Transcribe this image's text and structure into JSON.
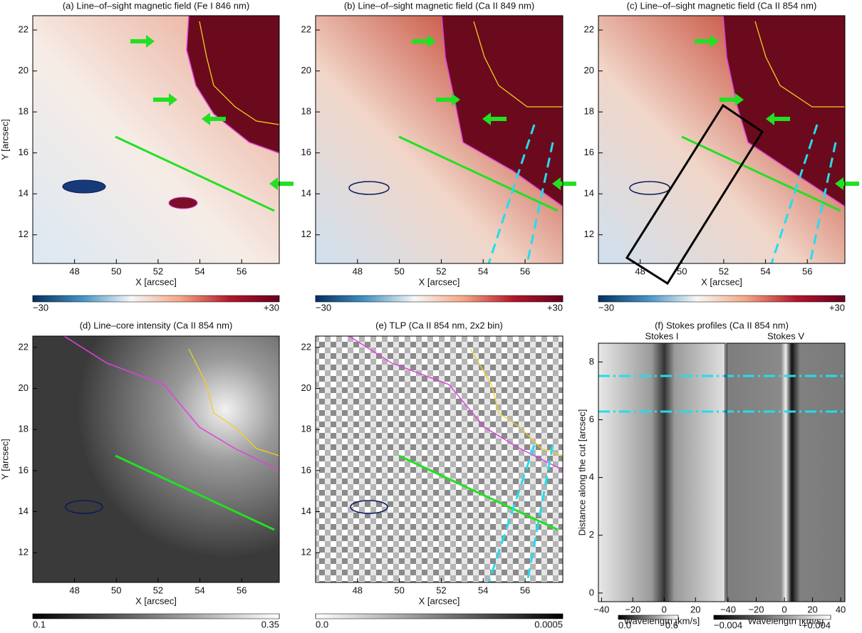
{
  "chart_data": [
    {
      "type": "heatmap",
      "title": "(a) Line–of–sight magnetic field (Fe I 846 nm)",
      "xlabel": "X [arcsec]",
      "ylabel": "Y [arcsec]",
      "xlim": [
        46,
        57.8
      ],
      "ylim": [
        10.6,
        22.7
      ],
      "xticks": [
        48,
        50,
        52,
        54,
        56
      ],
      "yticks": [
        12,
        14,
        16,
        18,
        20,
        22
      ],
      "colormap": [
        "#053061",
        "#4393c3",
        "#f7f7f7",
        "#f4a582",
        "#b2182b",
        "#67001f"
      ],
      "clim": [
        -30,
        30
      ],
      "colorbar": [
        {
          "value": -30,
          "label": "−30"
        },
        {
          "value": 30,
          "label": "+30"
        }
      ]
    },
    {
      "type": "heatmap",
      "title": "(b) Line–of–sight magnetic field (Ca II 849 nm)",
      "xlabel": "X [arcsec]",
      "xlim": [
        46,
        57.8
      ],
      "ylim": [
        10.6,
        22.7
      ],
      "xticks": [
        48,
        50,
        52,
        54,
        56
      ],
      "yticks": [
        12,
        14,
        16,
        18,
        20,
        22
      ],
      "colormap": [
        "#053061",
        "#4393c3",
        "#f7f7f7",
        "#f4a582",
        "#b2182b",
        "#67001f"
      ],
      "clim": [
        -30,
        30
      ],
      "colorbar": [
        {
          "value": -30,
          "label": "−30"
        },
        {
          "value": 30,
          "label": "+30"
        }
      ]
    },
    {
      "type": "heatmap",
      "title": "(c) Line–of–sight magnetic field (Ca II 854 nm)",
      "xlabel": "X [arcsec]",
      "xlim": [
        46,
        57.8
      ],
      "ylim": [
        10.6,
        22.7
      ],
      "xticks": [
        48,
        50,
        52,
        54,
        56
      ],
      "yticks": [
        12,
        14,
        16,
        18,
        20,
        22
      ],
      "colormap": [
        "#053061",
        "#4393c3",
        "#f7f7f7",
        "#f4a582",
        "#b2182b",
        "#67001f"
      ],
      "clim": [
        -30,
        30
      ],
      "colorbar": [
        {
          "value": -30,
          "label": "−30"
        },
        {
          "value": 30,
          "label": "+30"
        }
      ]
    },
    {
      "type": "heatmap",
      "title": "(d) Line–core intensity (Ca II 854 nm)",
      "xlabel": "X [arcsec]",
      "ylabel": "Y [arcsec]",
      "xlim": [
        46,
        57.8
      ],
      "ylim": [
        10.55,
        22.55
      ],
      "xticks": [
        48,
        50,
        52,
        54,
        56
      ],
      "yticks": [
        12,
        14,
        16,
        18,
        20,
        22
      ],
      "colormap": [
        "#000000",
        "#ffffff"
      ],
      "clim": [
        0.1,
        0.35
      ],
      "colorbar": [
        0.1,
        0.35
      ]
    },
    {
      "type": "heatmap",
      "title": "(e) TLP (Ca II 854 nm, 2x2 bin)",
      "xlabel": "X [arcsec]",
      "xlim": [
        46,
        57.8
      ],
      "ylim": [
        10.55,
        22.55
      ],
      "xticks": [
        48,
        50,
        52,
        54,
        56
      ],
      "yticks": [
        12,
        14,
        16,
        18,
        20,
        22
      ],
      "colormap": [
        "#ffffff",
        "#000000"
      ],
      "clim": [
        0,
        0.0005
      ],
      "colorbar": [
        {
          "value": 0,
          "label": "0.0"
        },
        0.0005
      ]
    },
    {
      "type": "heatmap",
      "title": "(f) Stokes profiles (Ca II 854 nm)",
      "subtitle": "Stokes I",
      "xlabel": "Wavelength [km/s]",
      "ylabel": "Distance along the cut [arcsec]",
      "xlim": [
        -42,
        39
      ],
      "ylim": [
        -0.3,
        8.65
      ],
      "xticks": [
        {
          "value": -40,
          "label": "−40"
        },
        {
          "value": -20,
          "label": "−20"
        },
        0,
        20
      ],
      "yticks": [
        0,
        2,
        4,
        6,
        8
      ],
      "colormap": [
        "#000000",
        "#ffffff"
      ],
      "clim": [
        0,
        0.6
      ],
      "colorbar": [
        {
          "value": 0,
          "label": "0.0"
        },
        0.6
      ]
    },
    {
      "type": "heatmap",
      "subtitle": "Stokes V",
      "xlabel": "Wavelength [km/s]",
      "xlim": [
        -41,
        43
      ],
      "ylim": [
        -0.3,
        8.65
      ],
      "xticks": [
        {
          "value": -40,
          "label": "−40"
        },
        {
          "value": -20,
          "label": "−20"
        },
        0,
        20,
        40
      ],
      "colormap": [
        "#000000",
        "#ffffff"
      ],
      "clim": [
        -0.004,
        0.004
      ],
      "colorbar": [
        {
          "value": -0.004,
          "label": "−0.004"
        },
        {
          "value": 0.004,
          "label": "+0.004"
        }
      ]
    }
  ]
}
